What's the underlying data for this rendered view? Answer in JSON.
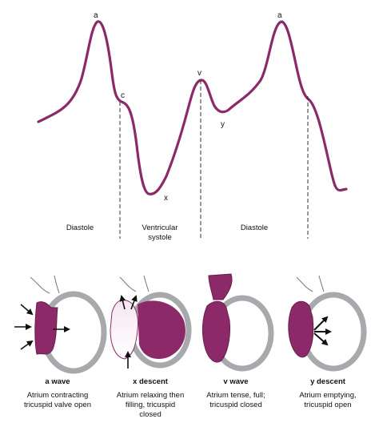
{
  "waveform": {
    "peak_labels": {
      "a1": "a",
      "c": "c",
      "x": "x",
      "v": "v",
      "y": "y",
      "a2": "a"
    },
    "phases": {
      "diastole_left": "Diastole",
      "systole_line1": "Ventricular",
      "systole_line2": "systole",
      "diastole_right": "Diastole"
    }
  },
  "panels": [
    {
      "title": "a wave",
      "desc_lines": [
        "Atrium contracting",
        "tricuspid valve open"
      ]
    },
    {
      "title": "x descent",
      "desc_lines": [
        "Atrium relaxing then",
        "filling, tricuspid",
        "closed"
      ]
    },
    {
      "title": "v wave",
      "desc_lines": [
        "Atrium tense, full;",
        "tricuspid closed"
      ]
    },
    {
      "title": "y descent",
      "desc_lines": [
        "Atrium emptying,",
        "tricuspid open"
      ]
    }
  ],
  "colors": {
    "wave": "#8c2a69",
    "atrium": "#8c2a69",
    "atrium_light": "#f2dbea",
    "ventricle_outline": "#a7a9ac",
    "dashed_line": "#333333"
  }
}
